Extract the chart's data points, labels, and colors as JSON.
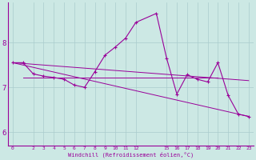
{
  "bg_color": "#cce8e4",
  "grid_color": "#aacccc",
  "line_color": "#990099",
  "xlabel": "Windchill (Refroidissement éolien,°C)",
  "xlim": [
    -0.5,
    23.5
  ],
  "ylim": [
    5.7,
    8.9
  ],
  "xticks": [
    0,
    2,
    3,
    4,
    5,
    6,
    7,
    8,
    9,
    10,
    11,
    12,
    15,
    16,
    17,
    18,
    19,
    20,
    21,
    22,
    23
  ],
  "yticks": [
    6,
    7,
    8
  ],
  "series1_x": [
    0,
    1,
    2,
    3,
    4,
    5,
    6,
    7,
    8,
    9,
    10,
    11,
    12,
    14,
    15,
    16,
    17,
    18,
    19,
    20,
    21,
    22,
    23
  ],
  "series1_y": [
    7.55,
    7.55,
    7.3,
    7.25,
    7.22,
    7.18,
    7.05,
    7.0,
    7.35,
    7.72,
    7.9,
    8.1,
    8.45,
    8.65,
    7.65,
    6.85,
    7.28,
    7.18,
    7.12,
    7.55,
    6.82,
    6.4,
    6.35
  ],
  "series2_x": [
    0,
    23
  ],
  "series2_y": [
    7.55,
    7.15
  ],
  "series3_x": [
    0,
    23
  ],
  "series3_y": [
    7.55,
    6.35
  ],
  "series4_x": [
    1,
    20
  ],
  "series4_y": [
    7.22,
    7.22
  ]
}
